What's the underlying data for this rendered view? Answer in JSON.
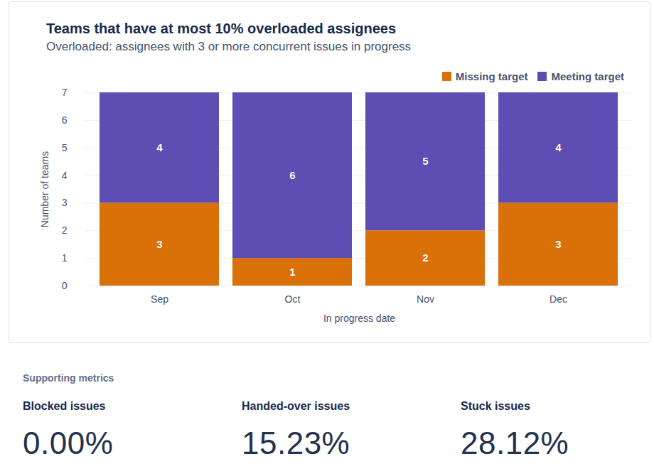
{
  "chart_data": {
    "type": "bar",
    "title": "Teams that have at most 10% overloaded assignees",
    "subtitle": "Overloaded: assignees with 3 or more concurrent issues in progress",
    "x_label": "In progress date",
    "y_label": "Number of teams",
    "categories": [
      "Sep",
      "Oct",
      "Nov",
      "Dec"
    ],
    "series": [
      {
        "name": "Missing target",
        "color": "#d97008",
        "values": [
          3,
          1,
          2,
          3
        ]
      },
      {
        "name": "Meeting target",
        "color": "#5e4db2",
        "values": [
          4,
          6,
          5,
          4
        ]
      }
    ],
    "ylim": [
      0,
      7
    ],
    "yticks": [
      0,
      1,
      2,
      3,
      4,
      5,
      6,
      7
    ],
    "stacked": true,
    "data_labels": true,
    "grid": true,
    "legend": "top-right"
  },
  "supporting_metrics": {
    "title": "Supporting metrics",
    "items": [
      {
        "label": "Blocked issues",
        "value": "0.00%"
      },
      {
        "label": "Handed-over issues",
        "value": "15.23%"
      },
      {
        "label": "Stuck issues",
        "value": "28.12%"
      }
    ]
  }
}
